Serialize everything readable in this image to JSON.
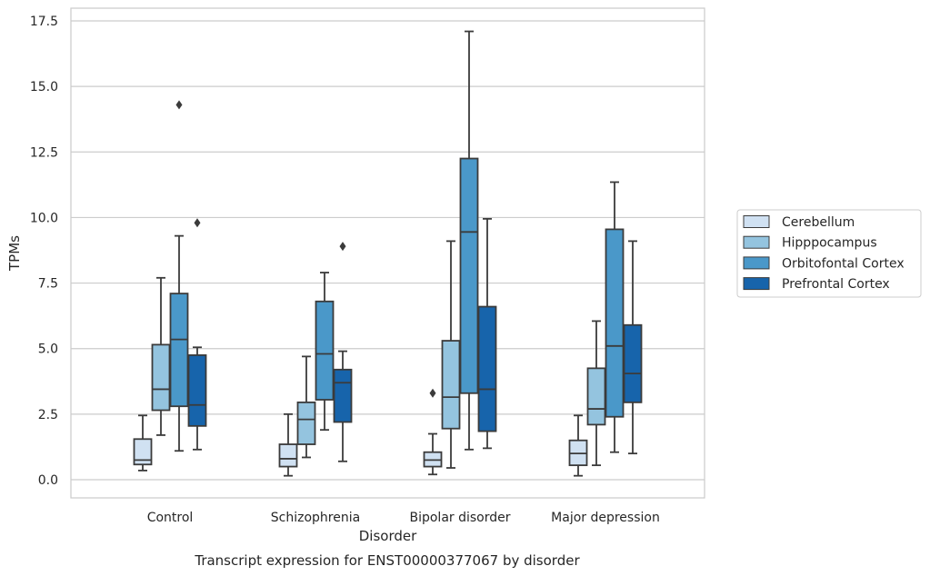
{
  "chart_data": {
    "type": "box",
    "title": "Transcript expression for ENST00000377067 by disorder",
    "xlabel": "Disorder",
    "ylabel": "TPMs",
    "ylim": [
      -0.65,
      18.0
    ],
    "yticks": [
      "0.0",
      "2.5",
      "5.0",
      "7.5",
      "10.0",
      "12.5",
      "15.0",
      "17.5"
    ],
    "ytick_values": [
      0,
      2.5,
      5,
      7.5,
      10,
      12.5,
      15,
      17.5
    ],
    "grid": "horizontal",
    "legend_position": "right",
    "categories": [
      "Control",
      "Schizophrenia",
      "Bipolar disorder",
      "Major depression"
    ],
    "series": [
      {
        "name": "Cerebellum",
        "color": "#d0e1f2",
        "boxes": [
          {
            "whisker_low": 0.35,
            "q1": 0.58,
            "median": 0.75,
            "q3": 1.55,
            "whisker_high": 2.45,
            "outliers": []
          },
          {
            "whisker_low": 0.15,
            "q1": 0.5,
            "median": 0.8,
            "q3": 1.35,
            "whisker_high": 2.5,
            "outliers": []
          },
          {
            "whisker_low": 0.2,
            "q1": 0.5,
            "median": 0.75,
            "q3": 1.05,
            "whisker_high": 1.75,
            "outliers": [
              3.3
            ]
          },
          {
            "whisker_low": 0.15,
            "q1": 0.55,
            "median": 1.0,
            "q3": 1.5,
            "whisker_high": 2.45,
            "outliers": []
          }
        ]
      },
      {
        "name": "Hipppocampus",
        "color": "#94c4df",
        "boxes": [
          {
            "whisker_low": 1.7,
            "q1": 2.65,
            "median": 3.45,
            "q3": 5.15,
            "whisker_high": 7.7,
            "outliers": []
          },
          {
            "whisker_low": 0.85,
            "q1": 1.35,
            "median": 2.3,
            "q3": 2.95,
            "whisker_high": 4.7,
            "outliers": []
          },
          {
            "whisker_low": 0.45,
            "q1": 1.95,
            "median": 3.15,
            "q3": 5.3,
            "whisker_high": 9.1,
            "outliers": []
          },
          {
            "whisker_low": 0.55,
            "q1": 2.1,
            "median": 2.7,
            "q3": 4.25,
            "whisker_high": 6.05,
            "outliers": []
          }
        ]
      },
      {
        "name": "Orbitofontal Cortex",
        "color": "#4a98c9",
        "boxes": [
          {
            "whisker_low": 1.1,
            "q1": 2.8,
            "median": 5.35,
            "q3": 7.1,
            "whisker_high": 9.3,
            "outliers": [
              14.3
            ]
          },
          {
            "whisker_low": 1.9,
            "q1": 3.05,
            "median": 4.8,
            "q3": 6.8,
            "whisker_high": 7.9,
            "outliers": []
          },
          {
            "whisker_low": 1.15,
            "q1": 3.3,
            "median": 9.45,
            "q3": 12.25,
            "whisker_high": 17.1,
            "outliers": []
          },
          {
            "whisker_low": 1.05,
            "q1": 2.4,
            "median": 5.1,
            "q3": 9.55,
            "whisker_high": 11.35,
            "outliers": []
          }
        ]
      },
      {
        "name": "Prefrontal Cortex",
        "color": "#1764ab",
        "boxes": [
          {
            "whisker_low": 1.15,
            "q1": 2.05,
            "median": 2.85,
            "q3": 4.75,
            "whisker_high": 5.05,
            "outliers": [
              9.8
            ]
          },
          {
            "whisker_low": 0.7,
            "q1": 2.2,
            "median": 3.7,
            "q3": 4.2,
            "whisker_high": 4.9,
            "outliers": [
              8.9
            ]
          },
          {
            "whisker_low": 1.2,
            "q1": 1.85,
            "median": 3.45,
            "q3": 6.6,
            "whisker_high": 9.95,
            "outliers": []
          },
          {
            "whisker_low": 1.0,
            "q1": 2.95,
            "median": 4.05,
            "q3": 5.9,
            "whisker_high": 9.1,
            "outliers": []
          }
        ]
      }
    ]
  }
}
